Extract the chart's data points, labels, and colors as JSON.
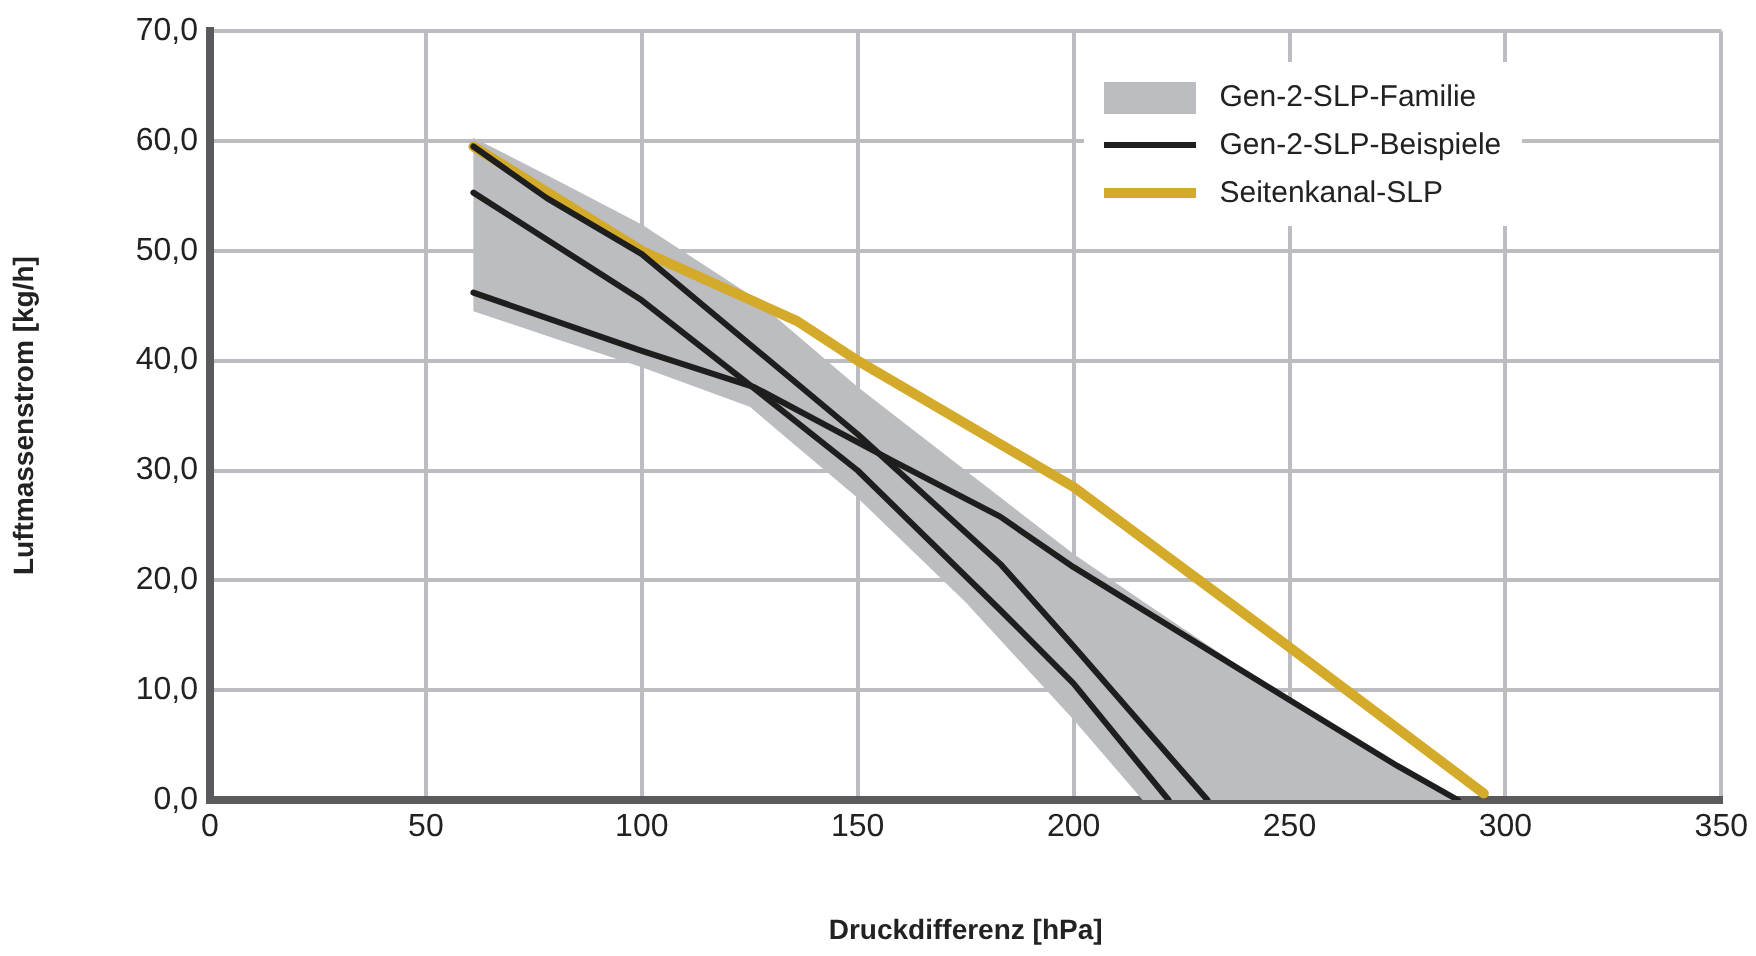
{
  "chart_data": {
    "type": "line",
    "xlabel": "Druckdifferenz [hPa]",
    "ylabel": "Luftmassenstrom [kg/h]",
    "xlim": [
      0,
      350
    ],
    "xticks": [
      0,
      50,
      100,
      150,
      200,
      250,
      300,
      350
    ],
    "ylim": [
      0,
      70
    ],
    "yticks": [
      {
        "value": 0,
        "label": "0,0"
      },
      {
        "value": 10,
        "label": "10,0"
      },
      {
        "value": 20,
        "label": "20,0"
      },
      {
        "value": 30,
        "label": "30,0"
      },
      {
        "value": 40,
        "label": "40,0"
      },
      {
        "value": 50,
        "label": "50,0"
      },
      {
        "value": 60,
        "label": "60,0"
      },
      {
        "value": 70,
        "label": "70,0"
      }
    ],
    "grid": true,
    "legend": "top right",
    "marker": "none",
    "line_style": "solid",
    "series": [
      {
        "name": "Gen-2-SLP-Familie",
        "type": "area",
        "color": "#bcbdc0",
        "x": [
          61,
          80,
          100,
          125,
          150,
          175,
          200,
          216,
          250,
          289
        ],
        "values": [
          null,
          null,
          null,
          null,
          null,
          null,
          null,
          null,
          null,
          null
        ],
        "upper": [
          60.3,
          56.5,
          52.4,
          46,
          37.6,
          30,
          22.4,
          18.1,
          9.1,
          0
        ],
        "lower": [
          44.5,
          42,
          39.4,
          35.8,
          27.5,
          18,
          7.3,
          0,
          0,
          0
        ]
      },
      {
        "name": "Gen-2-SLP-Beispiele",
        "color": "#1e1e1e",
        "x": [
          61,
          78,
          100,
          125,
          150,
          183,
          200,
          231
        ],
        "values": [
          59.5,
          54.8,
          49.7,
          41.5,
          33.3,
          21.5,
          14,
          0
        ]
      },
      {
        "color": "#1e1e1e",
        "x": [
          61,
          100,
          125,
          150,
          183,
          200,
          222
        ],
        "values": [
          55.3,
          45.5,
          37.8,
          30,
          17.3,
          10.6,
          0
        ]
      },
      {
        "color": "#1e1e1e",
        "x": [
          61,
          100,
          126,
          158,
          183,
          200,
          250,
          275,
          289
        ],
        "values": [
          46.2,
          40.9,
          37.6,
          30.9,
          25.8,
          21.2,
          9.1,
          3.1,
          0
        ]
      },
      {
        "name": "Seitenkanal-SLP",
        "color": "#d4aa2a",
        "x": [
          61,
          100,
          136,
          150,
          200,
          250,
          295
        ],
        "values": [
          59.5,
          50,
          43.6,
          40,
          28.5,
          13.9,
          0.6
        ]
      }
    ]
  }
}
